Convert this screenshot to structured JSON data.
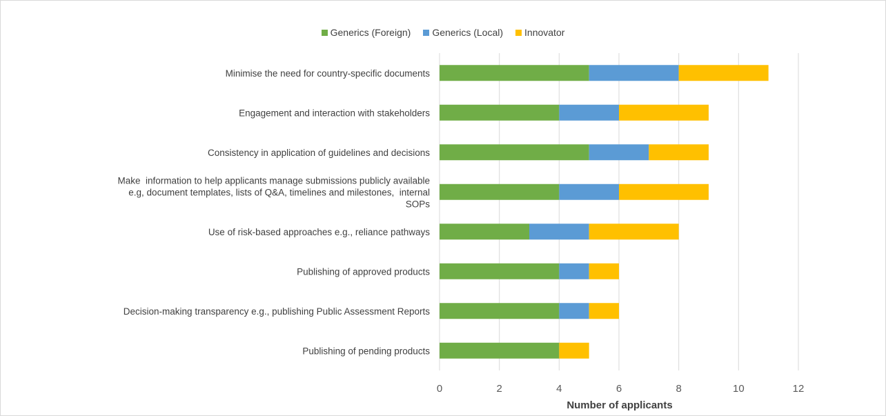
{
  "chart_data": {
    "type": "bar",
    "orientation": "horizontal",
    "stacked": true,
    "title": "",
    "xlabel": "Number of applicants",
    "ylabel": "",
    "xlim": [
      0,
      12
    ],
    "x_ticks": [
      0,
      2,
      4,
      6,
      8,
      10,
      12
    ],
    "grid": "vertical",
    "legend_position": "top",
    "categories": [
      [
        "Minimise the need for country-specific documents"
      ],
      [
        "Engagement and interaction with stakeholders"
      ],
      [
        "Consistency in application of guidelines and decisions"
      ],
      [
        "Make  information to help applicants manage submissions publicly available",
        "e.g, document templates, lists of Q&A, timelines and milestones,  internal",
        "SOPs"
      ],
      [
        "Use of risk-based approaches e.g., reliance pathways"
      ],
      [
        "Publishing of approved products"
      ],
      [
        "Decision-making transparency e.g., publishing Public Assessment Reports"
      ],
      [
        "Publishing of pending products"
      ]
    ],
    "series": [
      {
        "name": "Generics (Foreign)",
        "color": "#70ad47",
        "values": [
          5,
          4,
          5,
          4,
          3,
          4,
          4,
          4
        ]
      },
      {
        "name": "Generics (Local)",
        "color": "#5b9bd5",
        "values": [
          3,
          2,
          2,
          2,
          2,
          1,
          1,
          0
        ]
      },
      {
        "name": "Innovator",
        "color": "#ffc000",
        "values": [
          3,
          3,
          2,
          3,
          3,
          1,
          1,
          1
        ]
      }
    ]
  }
}
